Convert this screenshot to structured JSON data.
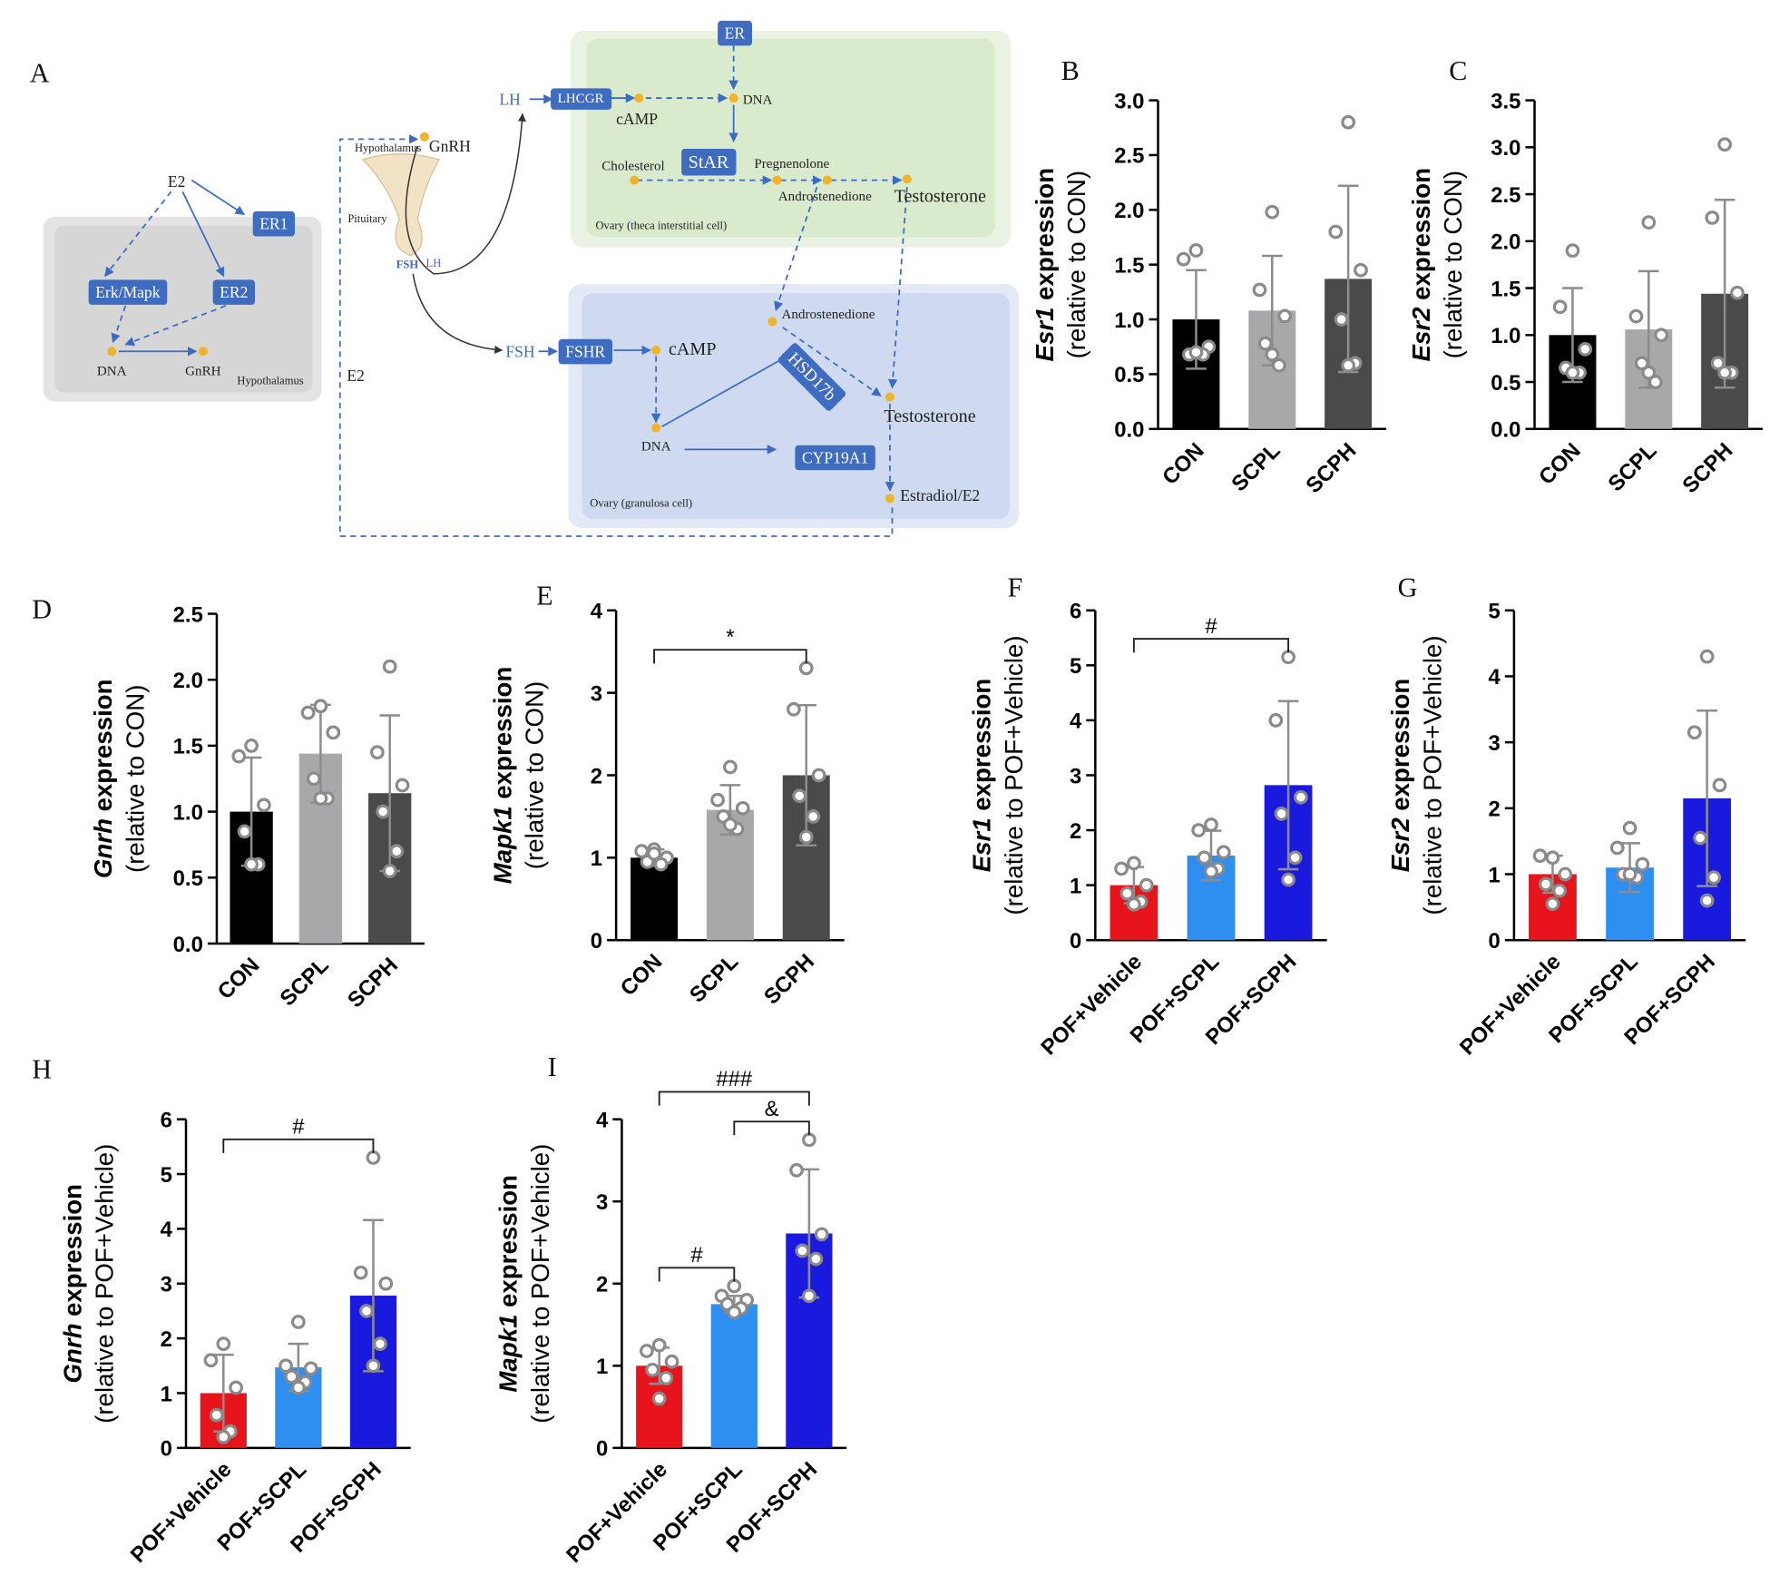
{
  "diagram": {
    "labels": [
      "A",
      "E2",
      "ER1",
      "Erk/Mapk",
      "ER2",
      "DNA",
      "GnRH",
      "Hypothalamus",
      "Hypothalamus",
      "GnRH",
      "Pituitary",
      "FSH",
      "LH",
      "E2",
      "LH",
      "LHCGR",
      "cAMP",
      "ER",
      "DNA",
      "Cholesterol",
      "StAR",
      "Pregnenolone",
      "Androstenedione",
      "Testosterone",
      "Ovary (theca interstitial cell)",
      "Androstenedione",
      "FSH",
      "FSHR",
      "cAMP",
      "HSD17b",
      "Testosterone",
      "DNA",
      "CYP19A1",
      "Estradiol/E2",
      "Ovary (granulosa cell)"
    ]
  },
  "chart_data": [
    {
      "type": "bar",
      "panel": "B",
      "ylabel_gene": "Esr1",
      "ylabel": "expression",
      "ylabel_note": "(relative to CON)",
      "categories": [
        "CON",
        "SCPL",
        "SCPH"
      ],
      "colors": [
        "#000000",
        "#a8a8ab",
        "#4a4a4a"
      ],
      "values": [
        1.0,
        1.08,
        1.37
      ],
      "errors": [
        0.45,
        0.5,
        0.85
      ],
      "points": [
        [
          1.63,
          1.55,
          0.75,
          0.68,
          0.68,
          0.7
        ],
        [
          1.98,
          1.27,
          1.03,
          0.78,
          0.58,
          0.68
        ],
        [
          2.8,
          1.8,
          1.45,
          1.0,
          0.6,
          0.58
        ]
      ],
      "ylim": [
        0,
        3
      ],
      "yticks": [
        {
          "value": 0,
          "label": "0.0"
        },
        0.5,
        {
          "value": 1,
          "label": "1.0"
        },
        1.5,
        {
          "value": 2,
          "label": "2.0"
        },
        2.5,
        {
          "value": 3,
          "label": "3.0"
        }
      ],
      "annotations": []
    },
    {
      "type": "bar",
      "panel": "C",
      "ylabel_gene": "Esr2",
      "ylabel": "expression",
      "ylabel_note": "(relative to CON)",
      "categories": [
        "CON",
        "SCPL",
        "SCPH"
      ],
      "colors": [
        "#000000",
        "#a8a8ab",
        "#4a4a4a"
      ],
      "values": [
        1.0,
        1.06,
        1.44
      ],
      "errors": [
        0.5,
        0.62,
        1.0
      ],
      "points": [
        [
          1.9,
          1.3,
          0.85,
          0.65,
          0.6,
          0.6
        ],
        [
          2.2,
          1.2,
          1.0,
          0.7,
          0.5,
          0.6
        ],
        [
          3.03,
          2.25,
          1.45,
          0.7,
          0.6,
          0.6
        ]
      ],
      "ylim": [
        0,
        3.5
      ],
      "yticks": [
        {
          "value": 0,
          "label": "0.0"
        },
        0.5,
        {
          "value": 1,
          "label": "1.0"
        },
        1.5,
        {
          "value": 2,
          "label": "2.0"
        },
        2.5,
        {
          "value": 3,
          "label": "3.0"
        },
        3.5
      ],
      "annotations": []
    },
    {
      "type": "bar",
      "panel": "D",
      "ylabel_gene": "Gnrh",
      "ylabel": "expression",
      "ylabel_note": "(relative to CON)",
      "categories": [
        "CON",
        "SCPL",
        "SCPH"
      ],
      "colors": [
        "#000000",
        "#a8a8ab",
        "#4a4a4a"
      ],
      "values": [
        1.0,
        1.44,
        1.14
      ],
      "errors": [
        0.41,
        0.37,
        0.59
      ],
      "points": [
        [
          1.5,
          1.42,
          1.05,
          0.85,
          0.6,
          0.6
        ],
        [
          1.8,
          1.75,
          1.6,
          1.25,
          1.1,
          1.1
        ],
        [
          2.1,
          1.45,
          1.2,
          1.0,
          0.7,
          0.55
        ]
      ],
      "ylim": [
        0,
        2.5
      ],
      "yticks": [
        {
          "value": 0,
          "label": "0.0"
        },
        0.5,
        {
          "value": 1,
          "label": "1.0"
        },
        1.5,
        {
          "value": 2,
          "label": "2.0"
        },
        2.5
      ],
      "annotations": []
    },
    {
      "type": "bar",
      "panel": "E",
      "ylabel_gene": "Mapk1",
      "ylabel": "expression",
      "ylabel_note": "(relative to CON)",
      "categories": [
        "CON",
        "SCPL",
        "SCPH"
      ],
      "colors": [
        "#000000",
        "#a8a8ab",
        "#4a4a4a"
      ],
      "values": [
        1.0,
        1.58,
        2.0
      ],
      "errors": [
        0.1,
        0.3,
        0.85
      ],
      "points": [
        [
          1.1,
          1.08,
          1.0,
          0.95,
          0.92,
          1.05
        ],
        [
          2.1,
          1.7,
          1.6,
          1.5,
          1.35,
          1.4
        ],
        [
          3.3,
          2.8,
          2.0,
          1.75,
          1.5,
          1.25
        ]
      ],
      "ylim": [
        0,
        4
      ],
      "yticks": [
        0,
        1,
        2,
        3,
        4
      ],
      "annotations": [
        {
          "text": "*",
          "between": [
            "CON",
            "SCPH"
          ]
        }
      ]
    },
    {
      "type": "bar",
      "panel": "F",
      "ylabel_gene": "Esr1",
      "ylabel": "expression",
      "ylabel_note": "(relative to POF+Vehicle)",
      "categories": [
        "POF+Vehicle",
        "POF+SCPL",
        "POF+SCPH"
      ],
      "colors": [
        "#e8141c",
        "#2f8ff0",
        "#1a1adf"
      ],
      "values": [
        1.0,
        1.54,
        2.82
      ],
      "errors": [
        0.33,
        0.45,
        1.53
      ],
      "points": [
        [
          1.4,
          1.3,
          1.0,
          0.85,
          0.7,
          0.65
        ],
        [
          2.1,
          2.0,
          1.6,
          1.5,
          1.3,
          1.25
        ],
        [
          5.15,
          4.0,
          2.6,
          2.3,
          1.5,
          1.1
        ]
      ],
      "ylim": [
        0,
        6
      ],
      "yticks": [
        0,
        1,
        2,
        3,
        4,
        5,
        6
      ],
      "annotations": [
        {
          "text": "#",
          "between": [
            "POF+Vehicle",
            "POF+SCPH"
          ]
        }
      ]
    },
    {
      "type": "bar",
      "panel": "G",
      "ylabel_gene": "Esr2",
      "ylabel": "expression",
      "ylabel_note": "(relative to POF+Vehicle)",
      "categories": [
        "POF+Vehicle",
        "POF+SCPL",
        "POF+SCPH"
      ],
      "colors": [
        "#e8141c",
        "#2f8ff0",
        "#1a1adf"
      ],
      "values": [
        1.0,
        1.1,
        2.15
      ],
      "errors": [
        0.28,
        0.37,
        1.33
      ],
      "points": [
        [
          1.25,
          1.28,
          1.0,
          0.85,
          0.75,
          0.55
        ],
        [
          1.7,
          1.4,
          1.15,
          1.0,
          0.95,
          1.0
        ],
        [
          4.3,
          3.15,
          2.35,
          1.55,
          0.95,
          0.6
        ]
      ],
      "ylim": [
        0,
        5
      ],
      "yticks": [
        0,
        1,
        2,
        3,
        4,
        5
      ],
      "annotations": []
    },
    {
      "type": "bar",
      "panel": "H",
      "ylabel_gene": "Gnrh",
      "ylabel": "expression",
      "ylabel_note": "(relative to POF+Vehicle)",
      "categories": [
        "POF+Vehicle",
        "POF+SCPL",
        "POF+SCPH"
      ],
      "colors": [
        "#e8141c",
        "#2f8ff0",
        "#1a1adf"
      ],
      "values": [
        1.0,
        1.47,
        2.78
      ],
      "errors": [
        0.7,
        0.43,
        1.38
      ],
      "points": [
        [
          1.9,
          1.6,
          1.1,
          0.6,
          0.3,
          0.2
        ],
        [
          2.3,
          1.5,
          1.45,
          1.3,
          1.2,
          1.1
        ],
        [
          5.3,
          3.2,
          3.0,
          2.5,
          1.9,
          1.5
        ]
      ],
      "ylim": [
        0,
        6
      ],
      "yticks": [
        0,
        1,
        2,
        3,
        4,
        5,
        6
      ],
      "annotations": [
        {
          "text": "#",
          "between": [
            "POF+Vehicle",
            "POF+SCPH"
          ]
        }
      ]
    },
    {
      "type": "bar",
      "panel": "I",
      "ylabel_gene": "Mapk1",
      "ylabel": "expression",
      "ylabel_note": "(relative to POF+Vehicle)",
      "categories": [
        "POF+Vehicle",
        "POF+SCPL",
        "POF+SCPH"
      ],
      "colors": [
        "#e8141c",
        "#2f8ff0",
        "#1a1adf"
      ],
      "values": [
        1.0,
        1.75,
        2.61
      ],
      "errors": [
        0.22,
        0.1,
        0.78
      ],
      "points": [
        [
          1.25,
          1.18,
          1.05,
          0.95,
          0.85,
          0.6
        ],
        [
          1.97,
          1.85,
          1.8,
          1.75,
          1.7,
          1.65
        ],
        [
          3.75,
          3.38,
          2.6,
          2.4,
          2.3,
          1.85
        ]
      ],
      "ylim": [
        0,
        4
      ],
      "yticks": [
        0,
        1,
        2,
        3,
        4
      ],
      "annotations": [
        {
          "text": "#",
          "between": [
            "POF+Vehicle",
            "POF+SCPL"
          ]
        },
        {
          "text": "&",
          "between": [
            "POF+SCPL",
            "POF+SCPH"
          ]
        },
        {
          "text": "###",
          "between": [
            "POF+Vehicle",
            "POF+SCPH"
          ]
        }
      ]
    }
  ]
}
